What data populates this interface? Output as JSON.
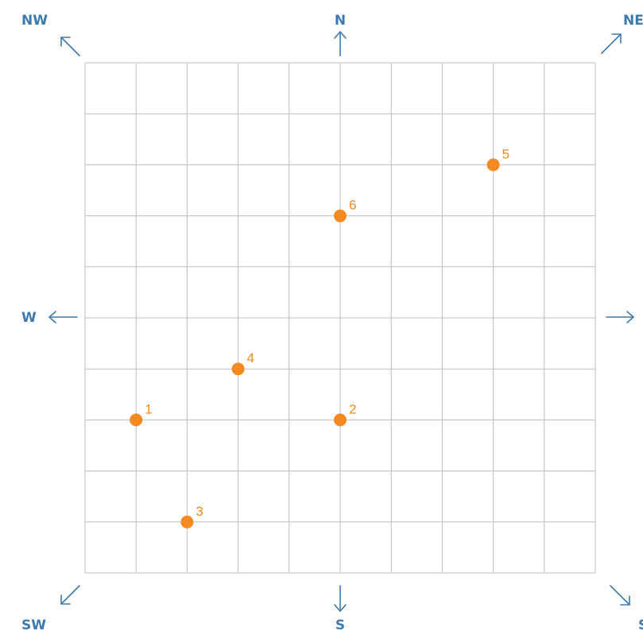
{
  "directions": {
    "nw": "NW",
    "n": "N",
    "ne": "NE",
    "w": "W",
    "e": "E",
    "sw": "SW",
    "s": "S",
    "se": "SE"
  },
  "grid": {
    "columns": 10,
    "rows": 10
  },
  "points": [
    {
      "label": "1",
      "col": 1,
      "row": 7
    },
    {
      "label": "2",
      "col": 5,
      "row": 7
    },
    {
      "label": "3",
      "col": 2,
      "row": 9
    },
    {
      "label": "4",
      "col": 3,
      "row": 6
    },
    {
      "label": "5",
      "col": 8,
      "row": 2
    },
    {
      "label": "6",
      "col": 5,
      "row": 3
    }
  ],
  "colors": {
    "compass": "#3d7ab0",
    "point": "#f58a22",
    "grid": "#bdbdbd"
  }
}
